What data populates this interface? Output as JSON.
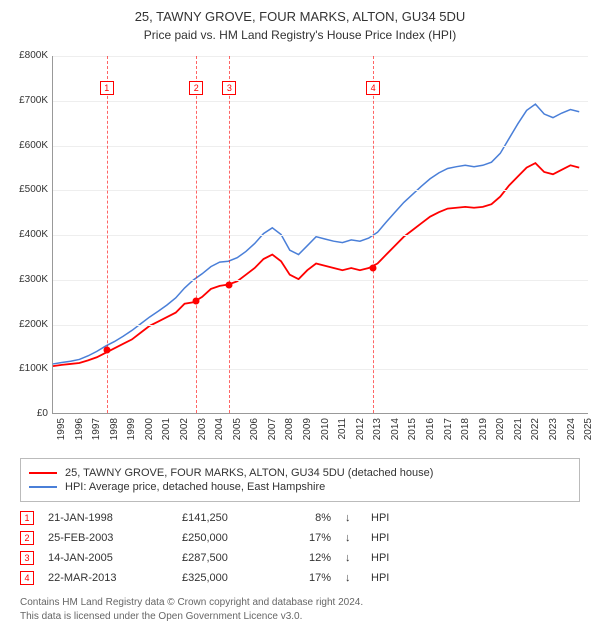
{
  "title": "25, TAWNY GROVE, FOUR MARKS, ALTON, GU34 5DU",
  "subtitle": "Price paid vs. HM Land Registry's House Price Index (HPI)",
  "chart": {
    "type": "line",
    "background_color": "#ffffff",
    "grid_color": "#eeeeee",
    "axis_color": "#999999",
    "xlim": [
      1995,
      2025.5
    ],
    "ylim": [
      0,
      800000
    ],
    "ytick_step": 100000,
    "yticks": [
      "£0",
      "£100K",
      "£200K",
      "£300K",
      "£400K",
      "£500K",
      "£600K",
      "£700K",
      "£800K"
    ],
    "xticks": [
      1995,
      1996,
      1997,
      1998,
      1999,
      2000,
      2001,
      2002,
      2003,
      2004,
      2005,
      2006,
      2007,
      2008,
      2009,
      2010,
      2011,
      2012,
      2013,
      2014,
      2015,
      2016,
      2017,
      2018,
      2019,
      2020,
      2021,
      2022,
      2023,
      2024,
      2025
    ],
    "label_fontsize": 10,
    "series": [
      {
        "name": "25, TAWNY GROVE, FOUR MARKS, ALTON, GU34 5DU (detached house)",
        "color": "#ff0000",
        "line_width": 1.8,
        "data": [
          [
            1995.0,
            105
          ],
          [
            1995.5,
            108
          ],
          [
            1996.0,
            110
          ],
          [
            1996.5,
            112
          ],
          [
            1997.0,
            118
          ],
          [
            1997.5,
            125
          ],
          [
            1998.0,
            135
          ],
          [
            1998.5,
            145
          ],
          [
            1999.0,
            155
          ],
          [
            1999.5,
            165
          ],
          [
            2000.0,
            180
          ],
          [
            2000.5,
            195
          ],
          [
            2001.0,
            205
          ],
          [
            2001.5,
            215
          ],
          [
            2002.0,
            225
          ],
          [
            2002.5,
            245
          ],
          [
            2003.0,
            248
          ],
          [
            2003.5,
            260
          ],
          [
            2004.0,
            278
          ],
          [
            2004.5,
            285
          ],
          [
            2005.0,
            288
          ],
          [
            2005.5,
            295
          ],
          [
            2006.0,
            310
          ],
          [
            2006.5,
            325
          ],
          [
            2007.0,
            345
          ],
          [
            2007.5,
            355
          ],
          [
            2008.0,
            340
          ],
          [
            2008.5,
            310
          ],
          [
            2009.0,
            300
          ],
          [
            2009.5,
            320
          ],
          [
            2010.0,
            335
          ],
          [
            2010.5,
            330
          ],
          [
            2011.0,
            325
          ],
          [
            2011.5,
            320
          ],
          [
            2012.0,
            325
          ],
          [
            2012.5,
            320
          ],
          [
            2013.0,
            325
          ],
          [
            2013.5,
            335
          ],
          [
            2014.0,
            355
          ],
          [
            2014.5,
            375
          ],
          [
            2015.0,
            395
          ],
          [
            2015.5,
            410
          ],
          [
            2016.0,
            425
          ],
          [
            2016.5,
            440
          ],
          [
            2017.0,
            450
          ],
          [
            2017.5,
            458
          ],
          [
            2018.0,
            460
          ],
          [
            2018.5,
            462
          ],
          [
            2019.0,
            460
          ],
          [
            2019.5,
            462
          ],
          [
            2020.0,
            468
          ],
          [
            2020.5,
            485
          ],
          [
            2021.0,
            510
          ],
          [
            2021.5,
            530
          ],
          [
            2022.0,
            550
          ],
          [
            2022.5,
            560
          ],
          [
            2023.0,
            540
          ],
          [
            2023.5,
            535
          ],
          [
            2024.0,
            545
          ],
          [
            2024.5,
            555
          ],
          [
            2025.0,
            550
          ]
        ]
      },
      {
        "name": "HPI: Average price, detached house, East Hampshire",
        "color": "#4a7fd8",
        "line_width": 1.5,
        "data": [
          [
            1995.0,
            110
          ],
          [
            1995.5,
            113
          ],
          [
            1996.0,
            116
          ],
          [
            1996.5,
            120
          ],
          [
            1997.0,
            128
          ],
          [
            1997.5,
            138
          ],
          [
            1998.0,
            150
          ],
          [
            1998.5,
            160
          ],
          [
            1999.0,
            172
          ],
          [
            1999.5,
            185
          ],
          [
            2000.0,
            200
          ],
          [
            2000.5,
            215
          ],
          [
            2001.0,
            228
          ],
          [
            2001.5,
            242
          ],
          [
            2002.0,
            258
          ],
          [
            2002.5,
            280
          ],
          [
            2003.0,
            298
          ],
          [
            2003.5,
            312
          ],
          [
            2004.0,
            328
          ],
          [
            2004.5,
            338
          ],
          [
            2005.0,
            340
          ],
          [
            2005.5,
            348
          ],
          [
            2006.0,
            362
          ],
          [
            2006.5,
            380
          ],
          [
            2007.0,
            402
          ],
          [
            2007.5,
            415
          ],
          [
            2008.0,
            400
          ],
          [
            2008.5,
            365
          ],
          [
            2009.0,
            355
          ],
          [
            2009.5,
            375
          ],
          [
            2010.0,
            395
          ],
          [
            2010.5,
            390
          ],
          [
            2011.0,
            385
          ],
          [
            2011.5,
            382
          ],
          [
            2012.0,
            388
          ],
          [
            2012.5,
            385
          ],
          [
            2013.0,
            392
          ],
          [
            2013.5,
            405
          ],
          [
            2014.0,
            428
          ],
          [
            2014.5,
            450
          ],
          [
            2015.0,
            472
          ],
          [
            2015.5,
            490
          ],
          [
            2016.0,
            508
          ],
          [
            2016.5,
            525
          ],
          [
            2017.0,
            538
          ],
          [
            2017.5,
            548
          ],
          [
            2018.0,
            552
          ],
          [
            2018.5,
            555
          ],
          [
            2019.0,
            552
          ],
          [
            2019.5,
            555
          ],
          [
            2020.0,
            562
          ],
          [
            2020.5,
            582
          ],
          [
            2021.0,
            615
          ],
          [
            2021.5,
            648
          ],
          [
            2022.0,
            678
          ],
          [
            2022.5,
            692
          ],
          [
            2023.0,
            670
          ],
          [
            2023.5,
            662
          ],
          [
            2024.0,
            672
          ],
          [
            2024.5,
            680
          ],
          [
            2025.0,
            675
          ]
        ]
      }
    ],
    "markers": [
      {
        "n": "1",
        "x": 1998.06,
        "y": 141250,
        "color": "#ff0000"
      },
      {
        "n": "2",
        "x": 2003.15,
        "y": 250000,
        "color": "#ff0000"
      },
      {
        "n": "3",
        "x": 2005.04,
        "y": 287500,
        "color": "#ff0000"
      },
      {
        "n": "4",
        "x": 2013.22,
        "y": 325000,
        "color": "#ff0000"
      }
    ],
    "marker_point_color": "#ff0000",
    "vline_color": "#ff0000"
  },
  "legend": {
    "items": [
      {
        "color": "#ff0000",
        "label": "25, TAWNY GROVE, FOUR MARKS, ALTON, GU34 5DU (detached house)"
      },
      {
        "color": "#4a7fd8",
        "label": "HPI: Average price, detached house, East Hampshire"
      }
    ]
  },
  "sales": [
    {
      "n": "1",
      "date": "21-JAN-1998",
      "price": "£141,250",
      "pct": "8%",
      "arrow": "↓",
      "ref": "HPI",
      "color": "#ff0000"
    },
    {
      "n": "2",
      "date": "25-FEB-2003",
      "price": "£250,000",
      "pct": "17%",
      "arrow": "↓",
      "ref": "HPI",
      "color": "#ff0000"
    },
    {
      "n": "3",
      "date": "14-JAN-2005",
      "price": "£287,500",
      "pct": "12%",
      "arrow": "↓",
      "ref": "HPI",
      "color": "#ff0000"
    },
    {
      "n": "4",
      "date": "22-MAR-2013",
      "price": "£325,000",
      "pct": "17%",
      "arrow": "↓",
      "ref": "HPI",
      "color": "#ff0000"
    }
  ],
  "footnote_1": "Contains HM Land Registry data © Crown copyright and database right 2024.",
  "footnote_2": "This data is licensed under the Open Government Licence v3.0."
}
